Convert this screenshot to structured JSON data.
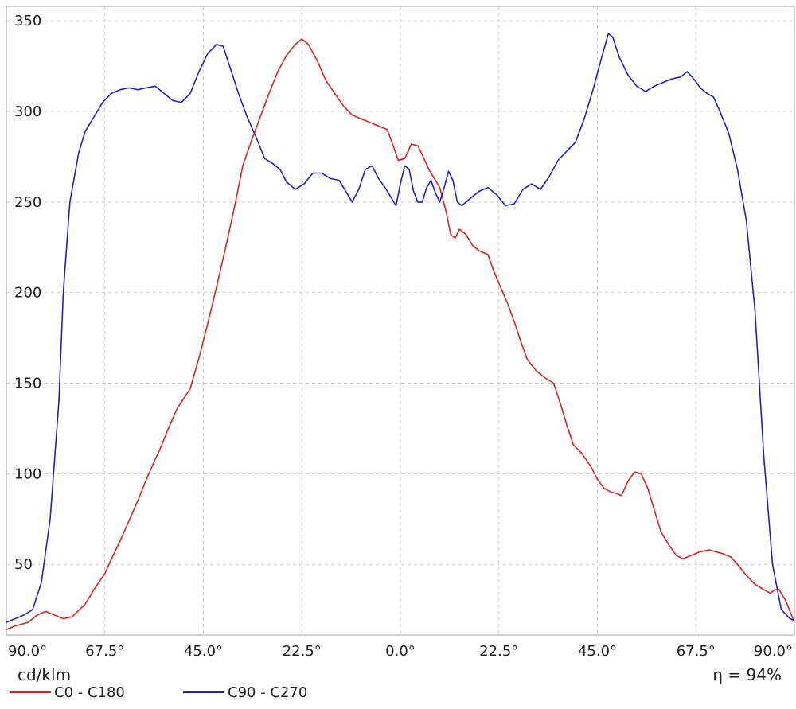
{
  "chart_data": {
    "type": "line",
    "title": "",
    "xlabel": "",
    "ylabel": "cd/klm",
    "efficiency_label": "η = 94%",
    "y_ticks": [
      50,
      100,
      150,
      200,
      250,
      300,
      350
    ],
    "x_tick_labels": [
      "90.0°",
      "67.5°",
      "45.0°",
      "22.5°",
      "0.0°",
      "22.5°",
      "45.0°",
      "67.5°",
      "90.0°"
    ],
    "x_ticks_signed": [
      -90,
      -67.5,
      -45,
      -22.5,
      0,
      22.5,
      45,
      67.5,
      90
    ],
    "xlim": [
      -90,
      90
    ],
    "ylim": [
      11,
      358
    ],
    "grid": true,
    "legend_position": "bottom-left",
    "series": [
      {
        "name": "C0 - C180",
        "color": "#e02020",
        "points": [
          [
            -90,
            14
          ],
          [
            -88,
            16
          ],
          [
            -85,
            18
          ],
          [
            -83,
            22
          ],
          [
            -81,
            24
          ],
          [
            -79,
            22
          ],
          [
            -77,
            20
          ],
          [
            -75,
            21
          ],
          [
            -72,
            28
          ],
          [
            -70,
            36
          ],
          [
            -67.5,
            45
          ],
          [
            -66,
            53
          ],
          [
            -64,
            63
          ],
          [
            -62,
            74
          ],
          [
            -60,
            85
          ],
          [
            -58,
            97
          ],
          [
            -56,
            108
          ],
          [
            -55,
            113
          ],
          [
            -53,
            125
          ],
          [
            -51,
            136
          ],
          [
            -48,
            147
          ],
          [
            -46,
            164
          ],
          [
            -44,
            183
          ],
          [
            -42,
            203
          ],
          [
            -40,
            224
          ],
          [
            -38,
            246
          ],
          [
            -36,
            270
          ],
          [
            -34,
            284
          ],
          [
            -32,
            297
          ],
          [
            -30,
            310
          ],
          [
            -28,
            322
          ],
          [
            -26,
            331
          ],
          [
            -24,
            337
          ],
          [
            -22.5,
            340
          ],
          [
            -21,
            337
          ],
          [
            -19,
            328
          ],
          [
            -17,
            317
          ],
          [
            -15,
            310
          ],
          [
            -13,
            303
          ],
          [
            -11,
            298
          ],
          [
            -9,
            296
          ],
          [
            -7,
            294
          ],
          [
            -5,
            292
          ],
          [
            -3,
            290
          ],
          [
            -1.5,
            280
          ],
          [
            -0.5,
            273
          ],
          [
            1,
            274
          ],
          [
            2.5,
            282
          ],
          [
            4,
            281
          ],
          [
            5,
            276
          ],
          [
            6.5,
            268
          ],
          [
            8,
            262
          ],
          [
            9,
            258
          ],
          [
            10.5,
            244
          ],
          [
            11.5,
            232
          ],
          [
            12.5,
            230
          ],
          [
            13.5,
            235
          ],
          [
            15,
            232
          ],
          [
            16.5,
            226
          ],
          [
            18,
            223
          ],
          [
            20,
            221
          ],
          [
            21,
            214
          ],
          [
            22.5,
            205
          ],
          [
            24.5,
            194
          ],
          [
            26,
            184
          ],
          [
            27.5,
            173
          ],
          [
            29,
            163
          ],
          [
            31,
            157
          ],
          [
            33,
            153
          ],
          [
            35,
            150
          ],
          [
            36.5,
            139
          ],
          [
            38,
            127
          ],
          [
            39.5,
            116
          ],
          [
            41.5,
            111
          ],
          [
            43.5,
            104
          ],
          [
            45,
            97
          ],
          [
            46.5,
            92
          ],
          [
            48,
            90
          ],
          [
            49.5,
            89
          ],
          [
            50.5,
            88
          ],
          [
            52,
            96
          ],
          [
            53.5,
            101
          ],
          [
            55,
            100
          ],
          [
            56.5,
            92
          ],
          [
            58,
            80
          ],
          [
            59.5,
            68
          ],
          [
            61.5,
            60
          ],
          [
            63,
            55
          ],
          [
            64.5,
            53
          ],
          [
            66.5,
            55
          ],
          [
            68.5,
            57
          ],
          [
            70.5,
            58
          ],
          [
            72,
            57
          ],
          [
            73.5,
            56
          ],
          [
            75.5,
            54
          ],
          [
            77,
            50
          ],
          [
            79,
            44
          ],
          [
            81,
            39
          ],
          [
            83,
            36
          ],
          [
            84.5,
            34
          ],
          [
            85.5,
            36
          ],
          [
            86.5,
            36
          ],
          [
            88,
            30
          ],
          [
            89,
            24
          ],
          [
            90,
            18
          ]
        ]
      },
      {
        "name": "C90 - C270",
        "color": "#2020d0",
        "points": [
          [
            -90,
            18
          ],
          [
            -88,
            20
          ],
          [
            -86,
            22
          ],
          [
            -84,
            25
          ],
          [
            -82,
            40
          ],
          [
            -80,
            75
          ],
          [
            -78,
            140
          ],
          [
            -77,
            200
          ],
          [
            -75.5,
            250
          ],
          [
            -73.5,
            277
          ],
          [
            -72,
            289
          ],
          [
            -70,
            297
          ],
          [
            -68,
            305
          ],
          [
            -66,
            310
          ],
          [
            -64,
            312
          ],
          [
            -62,
            313
          ],
          [
            -60,
            312
          ],
          [
            -58,
            313
          ],
          [
            -56,
            314
          ],
          [
            -54,
            310
          ],
          [
            -52,
            306
          ],
          [
            -50,
            305
          ],
          [
            -48,
            310
          ],
          [
            -46,
            322
          ],
          [
            -44,
            332
          ],
          [
            -42,
            337
          ],
          [
            -40.5,
            336
          ],
          [
            -39,
            325
          ],
          [
            -37,
            310
          ],
          [
            -35,
            297
          ],
          [
            -33,
            286
          ],
          [
            -31,
            274
          ],
          [
            -29,
            271
          ],
          [
            -27.5,
            268
          ],
          [
            -26,
            261
          ],
          [
            -24,
            257
          ],
          [
            -22,
            260
          ],
          [
            -20,
            266
          ],
          [
            -18,
            266
          ],
          [
            -16,
            263
          ],
          [
            -14,
            262
          ],
          [
            -12,
            254
          ],
          [
            -11,
            250
          ],
          [
            -9.5,
            257
          ],
          [
            -8,
            268
          ],
          [
            -6.5,
            270
          ],
          [
            -5,
            263
          ],
          [
            -3.5,
            258
          ],
          [
            -2,
            252
          ],
          [
            -1,
            248
          ],
          [
            0,
            260
          ],
          [
            1,
            270
          ],
          [
            2,
            268
          ],
          [
            3,
            256
          ],
          [
            4,
            250
          ],
          [
            5,
            250
          ],
          [
            6,
            258
          ],
          [
            7,
            262
          ],
          [
            8,
            255
          ],
          [
            9,
            250
          ],
          [
            10,
            258
          ],
          [
            11,
            267
          ],
          [
            12,
            262
          ],
          [
            13,
            250
          ],
          [
            14,
            248
          ],
          [
            16,
            252
          ],
          [
            18,
            256
          ],
          [
            20,
            258
          ],
          [
            22,
            254
          ],
          [
            24,
            248
          ],
          [
            26,
            249
          ],
          [
            28,
            257
          ],
          [
            30,
            260
          ],
          [
            32,
            257
          ],
          [
            34,
            264
          ],
          [
            36,
            273
          ],
          [
            38,
            278
          ],
          [
            40,
            283
          ],
          [
            42,
            296
          ],
          [
            44,
            312
          ],
          [
            46,
            330
          ],
          [
            47.5,
            343
          ],
          [
            48.5,
            341
          ],
          [
            50,
            330
          ],
          [
            52,
            320
          ],
          [
            54,
            314
          ],
          [
            56,
            311
          ],
          [
            58,
            314
          ],
          [
            60,
            316
          ],
          [
            62,
            318
          ],
          [
            64,
            319
          ],
          [
            65.5,
            322
          ],
          [
            67,
            318
          ],
          [
            68.5,
            313
          ],
          [
            70,
            310
          ],
          [
            71.5,
            308
          ],
          [
            73,
            300
          ],
          [
            75,
            288
          ],
          [
            77,
            268
          ],
          [
            79,
            240
          ],
          [
            81,
            190
          ],
          [
            83,
            110
          ],
          [
            85,
            50
          ],
          [
            87,
            25
          ],
          [
            89,
            20
          ],
          [
            90,
            19
          ]
        ]
      }
    ]
  }
}
